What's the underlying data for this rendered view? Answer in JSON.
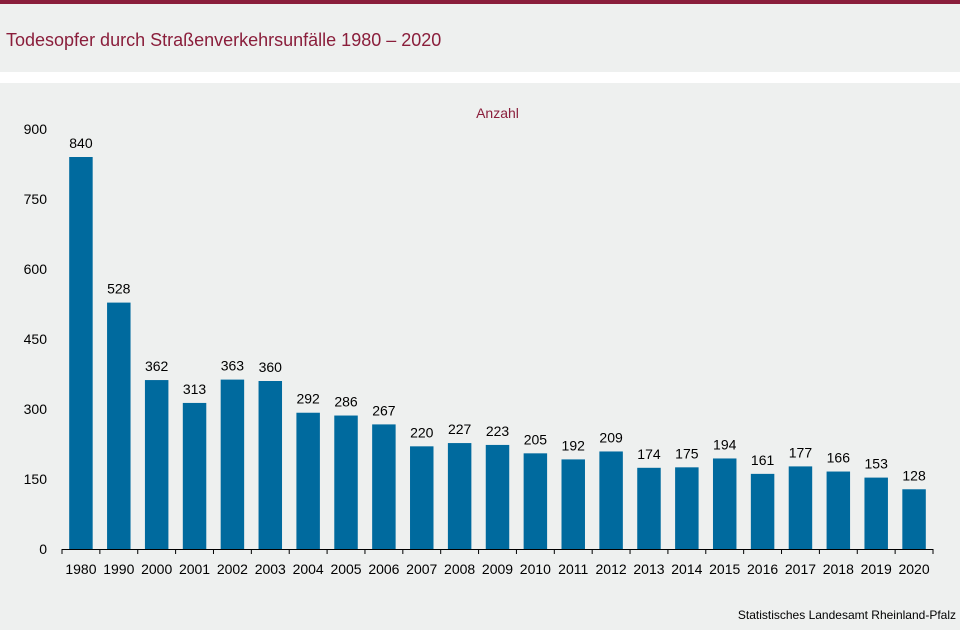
{
  "title": "Todesopfer durch Straßenverkehrsunfälle 1980 – 2020",
  "source": "Statistisches Landesamt Rheinland-Pfalz",
  "colors": {
    "accent": "#8a1e3b",
    "bar": "#006a9e"
  },
  "chart_data": {
    "type": "bar",
    "subtitle": "Anzahl",
    "categories": [
      "1980",
      "1990",
      "2000",
      "2001",
      "2002",
      "2003",
      "2004",
      "2005",
      "2006",
      "2007",
      "2008",
      "2009",
      "2010",
      "2011",
      "2012",
      "2013",
      "2014",
      "2015",
      "2016",
      "2017",
      "2018",
      "2019",
      "2020"
    ],
    "values": [
      840,
      528,
      362,
      313,
      363,
      360,
      292,
      286,
      267,
      220,
      227,
      223,
      205,
      192,
      209,
      174,
      175,
      194,
      161,
      177,
      166,
      153,
      128
    ],
    "yticks": [
      0,
      150,
      300,
      450,
      600,
      750,
      900
    ],
    "ylim": [
      0,
      900
    ],
    "grid": false,
    "legend": "none",
    "data_labels": true
  }
}
